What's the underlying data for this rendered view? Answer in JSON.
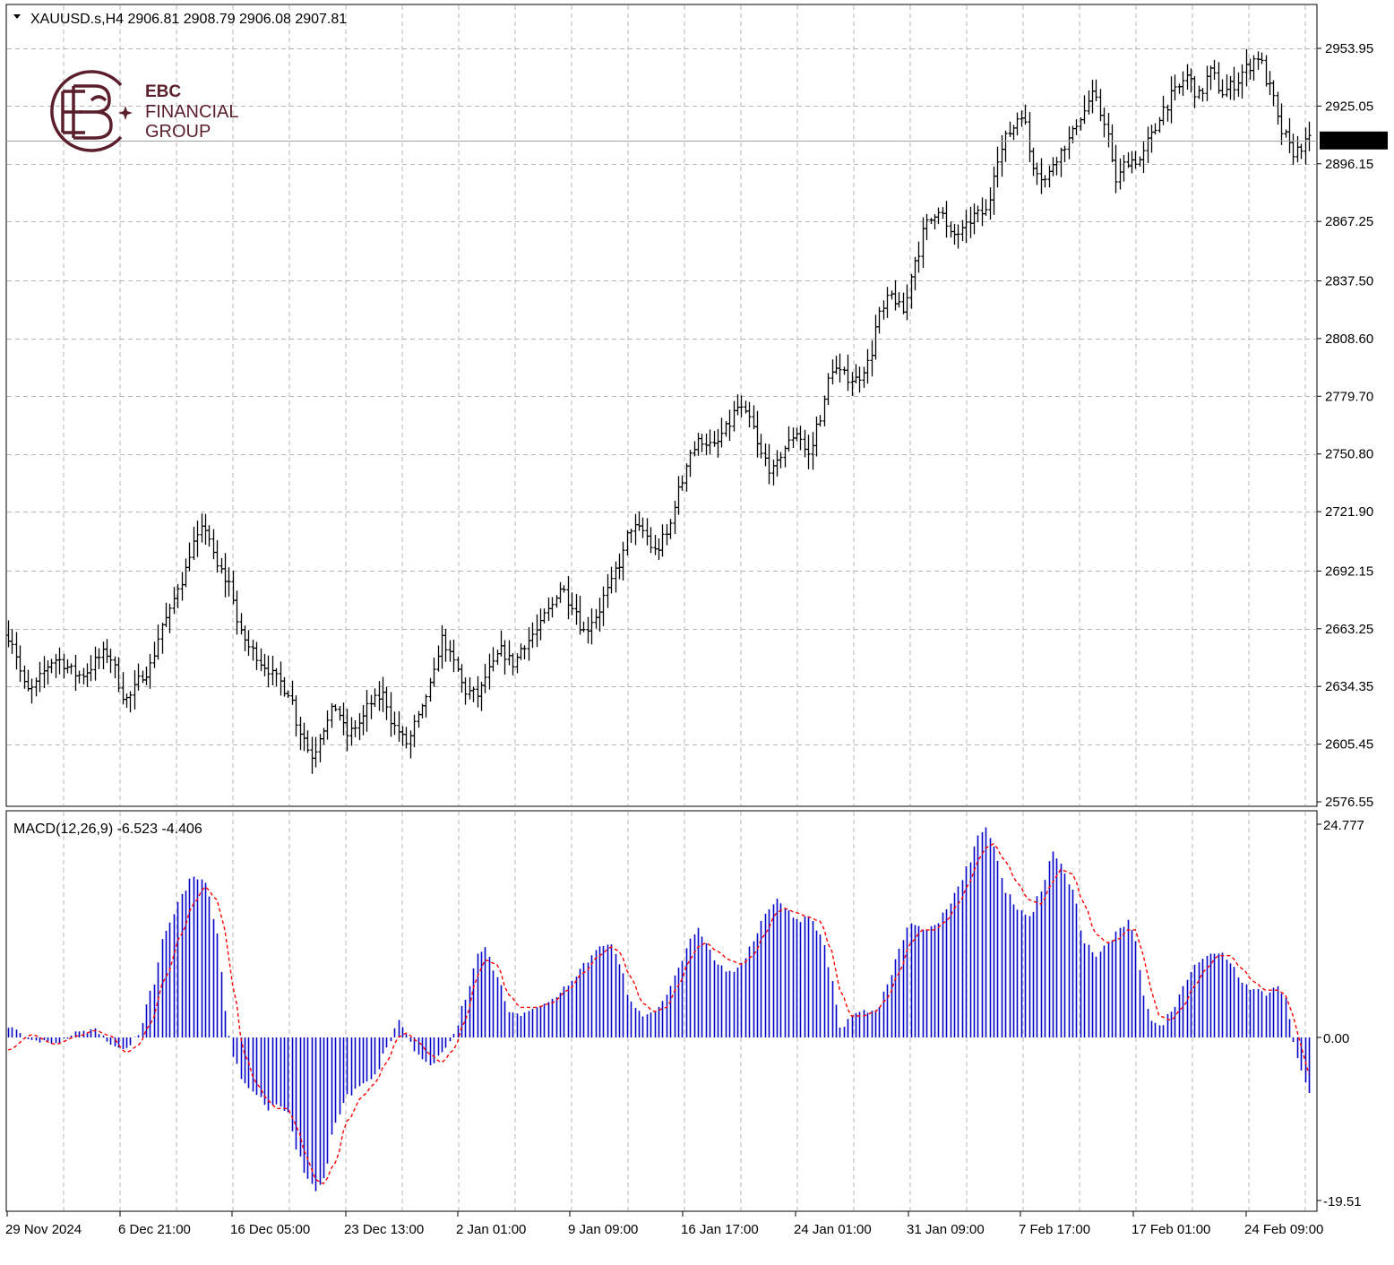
{
  "header": {
    "symbol_line": "XAUUSD.s,H4  2906.81 2908.79 2906.08 2907.81",
    "macd_line": "MACD(12,26,9) -6.523 -4.406"
  },
  "logo": {
    "line1": "EBC",
    "line2": "FINANCIAL",
    "line3": "GROUP",
    "color": "#5a1f2b"
  },
  "colors": {
    "bars": "#000000",
    "histogram": "#0000c8",
    "signal": "#ff0000",
    "grid": "#b4b4b4",
    "price_tag_bg": "#000000",
    "price_tag_text": "#ffffff"
  },
  "chart_data": [
    {
      "type": "line",
      "name": "price-panel",
      "symbol": "XAUUSD.s",
      "timeframe": "H4",
      "ohlc_last": {
        "open": 2906.81,
        "high": 2908.79,
        "low": 2906.08,
        "close": 2907.81
      },
      "current_price": "2907.81",
      "y_ticks": [
        "2953.95",
        "2925.05",
        "2896.15",
        "2867.25",
        "2837.50",
        "2808.60",
        "2779.70",
        "2750.80",
        "2721.90",
        "2692.15",
        "2663.25",
        "2634.35",
        "2605.45",
        "2576.55"
      ],
      "ylim": [
        2576.55,
        2953.95
      ],
      "x_ticks": [
        "29 Nov 2024",
        "6 Dec 21:00",
        "16 Dec 05:00",
        "23 Dec 13:00",
        "2 Jan 01:00",
        "9 Jan 09:00",
        "16 Jan 17:00",
        "24 Jan 01:00",
        "31 Jan 09:00",
        "7 Feb 17:00",
        "17 Feb 01:00",
        "24 Feb 09:00"
      ],
      "grid": true,
      "anchors": [
        [
          0,
          2660
        ],
        [
          5,
          2632
        ],
        [
          12,
          2648
        ],
        [
          18,
          2640
        ],
        [
          25,
          2651
        ],
        [
          30,
          2628
        ],
        [
          35,
          2642
        ],
        [
          40,
          2668
        ],
        [
          44,
          2688
        ],
        [
          47,
          2706
        ],
        [
          50,
          2714
        ],
        [
          53,
          2694
        ],
        [
          56,
          2686
        ],
        [
          59,
          2660
        ],
        [
          62,
          2652
        ],
        [
          65,
          2645
        ],
        [
          68,
          2638
        ],
        [
          71,
          2632
        ],
        [
          74,
          2612
        ],
        [
          77,
          2600
        ],
        [
          80,
          2614
        ],
        [
          83,
          2624
        ],
        [
          86,
          2610
        ],
        [
          89,
          2616
        ],
        [
          92,
          2626
        ],
        [
          95,
          2630
        ],
        [
          98,
          2614
        ],
        [
          101,
          2606
        ],
        [
          104,
          2618
        ],
        [
          107,
          2634
        ],
        [
          110,
          2658
        ],
        [
          113,
          2646
        ],
        [
          116,
          2632
        ],
        [
          119,
          2630
        ],
        [
          122,
          2642
        ],
        [
          125,
          2652
        ],
        [
          128,
          2646
        ],
        [
          131,
          2656
        ],
        [
          134,
          2662
        ],
        [
          137,
          2672
        ],
        [
          140,
          2684
        ],
        [
          143,
          2676
        ],
        [
          146,
          2662
        ],
        [
          149,
          2670
        ],
        [
          152,
          2682
        ],
        [
          155,
          2696
        ],
        [
          158,
          2714
        ],
        [
          161,
          2712
        ],
        [
          164,
          2702
        ],
        [
          167,
          2710
        ],
        [
          170,
          2732
        ],
        [
          173,
          2752
        ],
        [
          176,
          2758
        ],
        [
          179,
          2754
        ],
        [
          182,
          2763
        ],
        [
          185,
          2774
        ],
        [
          188,
          2768
        ],
        [
          191,
          2750
        ],
        [
          194,
          2742
        ],
        [
          197,
          2754
        ],
        [
          200,
          2762
        ],
        [
          203,
          2750
        ],
        [
          206,
          2770
        ],
        [
          209,
          2794
        ],
        [
          212,
          2790
        ],
        [
          215,
          2788
        ],
        [
          218,
          2796
        ],
        [
          221,
          2820
        ],
        [
          224,
          2830
        ],
        [
          227,
          2822
        ],
        [
          230,
          2848
        ],
        [
          233,
          2866
        ],
        [
          236,
          2874
        ],
        [
          239,
          2860
        ],
        [
          242,
          2862
        ],
        [
          245,
          2870
        ],
        [
          248,
          2872
        ],
        [
          251,
          2900
        ],
        [
          254,
          2912
        ],
        [
          257,
          2922
        ],
        [
          260,
          2896
        ],
        [
          263,
          2888
        ],
        [
          266,
          2900
        ],
        [
          269,
          2908
        ],
        [
          272,
          2920
        ],
        [
          275,
          2930
        ],
        [
          278,
          2918
        ],
        [
          281,
          2888
        ],
        [
          284,
          2898
        ],
        [
          287,
          2898
        ],
        [
          290,
          2910
        ],
        [
          293,
          2924
        ],
        [
          296,
          2932
        ],
        [
          299,
          2940
        ],
        [
          302,
          2930
        ],
        [
          305,
          2942
        ],
        [
          308,
          2932
        ],
        [
          311,
          2936
        ],
        [
          314,
          2944
        ],
        [
          317,
          2950
        ],
        [
          320,
          2934
        ],
        [
          323,
          2912
        ],
        [
          326,
          2902
        ],
        [
          329,
          2906
        ],
        [
          330,
          2907.81
        ]
      ]
    },
    {
      "type": "bar",
      "name": "macd-panel",
      "series": [
        {
          "name": "MACD",
          "last": -6.523
        },
        {
          "name": "Signal",
          "last": -4.406
        }
      ],
      "y_ticks": [
        "24.777",
        "0.00",
        "-19.51"
      ],
      "ylim": [
        -19.51,
        24.777
      ],
      "anchors": [
        [
          0,
          1.2
        ],
        [
          6,
          -0.4
        ],
        [
          12,
          -0.6
        ],
        [
          18,
          0.6
        ],
        [
          22,
          0.9
        ],
        [
          26,
          -0.7
        ],
        [
          30,
          -1.5
        ],
        [
          33,
          0.5
        ],
        [
          36,
          5.2
        ],
        [
          40,
          12.5
        ],
        [
          44,
          16.5
        ],
        [
          47,
          18.8
        ],
        [
          50,
          18.0
        ],
        [
          53,
          12.0
        ],
        [
          55,
          3.0
        ],
        [
          57,
          -2.5
        ],
        [
          60,
          -5.5
        ],
        [
          63,
          -6.8
        ],
        [
          66,
          -8.5
        ],
        [
          68,
          -8.2
        ],
        [
          71,
          -9.0
        ],
        [
          73,
          -13.5
        ],
        [
          76,
          -17.0
        ],
        [
          78,
          -18.5
        ],
        [
          80,
          -17.0
        ],
        [
          83,
          -10.0
        ],
        [
          86,
          -7.0
        ],
        [
          90,
          -5.5
        ],
        [
          93,
          -4.5
        ],
        [
          96,
          -1.0
        ],
        [
          99,
          2.0
        ],
        [
          101,
          0.2
        ],
        [
          104,
          -2.0
        ],
        [
          107,
          -3.5
        ],
        [
          110,
          -2.0
        ],
        [
          113,
          0.3
        ],
        [
          116,
          4.5
        ],
        [
          119,
          9.5
        ],
        [
          121,
          10.5
        ],
        [
          124,
          7.0
        ],
        [
          127,
          3.0
        ],
        [
          130,
          2.5
        ],
        [
          134,
          3.5
        ],
        [
          138,
          4.5
        ],
        [
          142,
          6.0
        ],
        [
          146,
          8.5
        ],
        [
          150,
          10.5
        ],
        [
          153,
          11.0
        ],
        [
          155,
          8.5
        ],
        [
          158,
          4.0
        ],
        [
          161,
          2.5
        ],
        [
          164,
          3.0
        ],
        [
          167,
          5.0
        ],
        [
          170,
          8.0
        ],
        [
          173,
          11.5
        ],
        [
          175,
          12.5
        ],
        [
          177,
          11.0
        ],
        [
          180,
          8.5
        ],
        [
          183,
          7.5
        ],
        [
          186,
          8.5
        ],
        [
          189,
          11.0
        ],
        [
          192,
          14.5
        ],
        [
          195,
          16.0
        ],
        [
          197,
          15.0
        ],
        [
          200,
          13.5
        ],
        [
          203,
          14.0
        ],
        [
          206,
          12.0
        ],
        [
          209,
          6.5
        ],
        [
          211,
          1.0
        ],
        [
          214,
          2.5
        ],
        [
          217,
          3.0
        ],
        [
          220,
          3.0
        ],
        [
          223,
          6.0
        ],
        [
          226,
          10.5
        ],
        [
          229,
          13.5
        ],
        [
          232,
          12.5
        ],
        [
          235,
          13.0
        ],
        [
          238,
          15.0
        ],
        [
          241,
          17.5
        ],
        [
          244,
          20.5
        ],
        [
          246,
          23.5
        ],
        [
          248,
          24.2
        ],
        [
          250,
          22.0
        ],
        [
          253,
          17.0
        ],
        [
          256,
          15.0
        ],
        [
          259,
          14.0
        ],
        [
          262,
          17.0
        ],
        [
          265,
          21.5
        ],
        [
          267,
          20.0
        ],
        [
          270,
          17.0
        ],
        [
          273,
          11.0
        ],
        [
          276,
          9.5
        ],
        [
          279,
          11.0
        ],
        [
          282,
          12.5
        ],
        [
          284,
          13.5
        ],
        [
          286,
          11.0
        ],
        [
          288,
          5.0
        ],
        [
          290,
          2.0
        ],
        [
          292,
          1.2
        ],
        [
          295,
          3.0
        ],
        [
          298,
          6.0
        ],
        [
          301,
          8.5
        ],
        [
          304,
          9.5
        ],
        [
          307,
          10.0
        ],
        [
          310,
          8.5
        ],
        [
          313,
          6.5
        ],
        [
          316,
          5.5
        ],
        [
          319,
          5.0
        ],
        [
          322,
          6.0
        ],
        [
          324,
          4.5
        ],
        [
          326,
          -0.5
        ],
        [
          328,
          -4.0
        ],
        [
          330,
          -6.523
        ]
      ],
      "signal_anchors": [
        [
          0,
          -1.5
        ],
        [
          6,
          0.3
        ],
        [
          12,
          -0.8
        ],
        [
          18,
          0.2
        ],
        [
          22,
          0.8
        ],
        [
          26,
          0.2
        ],
        [
          30,
          -1.8
        ],
        [
          33,
          -1.0
        ],
        [
          36,
          1.5
        ],
        [
          40,
          7.0
        ],
        [
          44,
          12.0
        ],
        [
          47,
          15.5
        ],
        [
          50,
          17.5
        ],
        [
          53,
          16.0
        ],
        [
          55,
          12.5
        ],
        [
          57,
          6.0
        ],
        [
          60,
          -2.0
        ],
        [
          63,
          -5.5
        ],
        [
          66,
          -7.5
        ],
        [
          68,
          -8.5
        ],
        [
          71,
          -8.5
        ],
        [
          73,
          -10.5
        ],
        [
          76,
          -14.5
        ],
        [
          78,
          -17.0
        ],
        [
          80,
          -17.5
        ],
        [
          83,
          -15.0
        ],
        [
          86,
          -10.0
        ],
        [
          90,
          -7.0
        ],
        [
          93,
          -5.5
        ],
        [
          96,
          -3.0
        ],
        [
          99,
          0.0
        ],
        [
          101,
          0.5
        ],
        [
          104,
          -0.5
        ],
        [
          107,
          -2.0
        ],
        [
          110,
          -3.0
        ],
        [
          113,
          -1.5
        ],
        [
          116,
          2.0
        ],
        [
          119,
          7.0
        ],
        [
          121,
          9.0
        ],
        [
          124,
          8.5
        ],
        [
          127,
          5.0
        ],
        [
          130,
          3.5
        ],
        [
          134,
          3.5
        ],
        [
          138,
          4.0
        ],
        [
          142,
          5.5
        ],
        [
          146,
          7.5
        ],
        [
          150,
          9.5
        ],
        [
          153,
          10.5
        ],
        [
          155,
          10.0
        ],
        [
          158,
          7.0
        ],
        [
          161,
          4.0
        ],
        [
          164,
          3.0
        ],
        [
          167,
          3.5
        ],
        [
          170,
          6.0
        ],
        [
          173,
          9.0
        ],
        [
          175,
          10.5
        ],
        [
          177,
          11.0
        ],
        [
          180,
          10.0
        ],
        [
          183,
          9.0
        ],
        [
          186,
          8.5
        ],
        [
          189,
          9.5
        ],
        [
          192,
          12.0
        ],
        [
          195,
          14.5
        ],
        [
          197,
          15.0
        ],
        [
          200,
          14.5
        ],
        [
          203,
          14.0
        ],
        [
          206,
          13.5
        ],
        [
          209,
          10.0
        ],
        [
          211,
          5.5
        ],
        [
          214,
          2.5
        ],
        [
          217,
          2.5
        ],
        [
          220,
          3.0
        ],
        [
          223,
          4.5
        ],
        [
          226,
          7.5
        ],
        [
          229,
          11.0
        ],
        [
          232,
          12.5
        ],
        [
          235,
          12.5
        ],
        [
          238,
          13.5
        ],
        [
          241,
          15.5
        ],
        [
          244,
          18.0
        ],
        [
          246,
          20.5
        ],
        [
          248,
          22.0
        ],
        [
          250,
          22.5
        ],
        [
          253,
          20.5
        ],
        [
          256,
          18.0
        ],
        [
          259,
          16.0
        ],
        [
          262,
          15.5
        ],
        [
          265,
          18.0
        ],
        [
          267,
          19.5
        ],
        [
          270,
          19.0
        ],
        [
          273,
          15.5
        ],
        [
          276,
          12.0
        ],
        [
          279,
          11.0
        ],
        [
          282,
          11.5
        ],
        [
          284,
          12.5
        ],
        [
          286,
          12.5
        ],
        [
          288,
          9.5
        ],
        [
          290,
          5.5
        ],
        [
          292,
          2.5
        ],
        [
          295,
          2.0
        ],
        [
          298,
          3.5
        ],
        [
          301,
          6.0
        ],
        [
          304,
          8.0
        ],
        [
          307,
          9.5
        ],
        [
          310,
          9.5
        ],
        [
          313,
          8.0
        ],
        [
          316,
          6.5
        ],
        [
          319,
          5.5
        ],
        [
          322,
          5.5
        ],
        [
          324,
          5.0
        ],
        [
          326,
          2.5
        ],
        [
          328,
          -1.0
        ],
        [
          330,
          -4.406
        ]
      ]
    }
  ]
}
